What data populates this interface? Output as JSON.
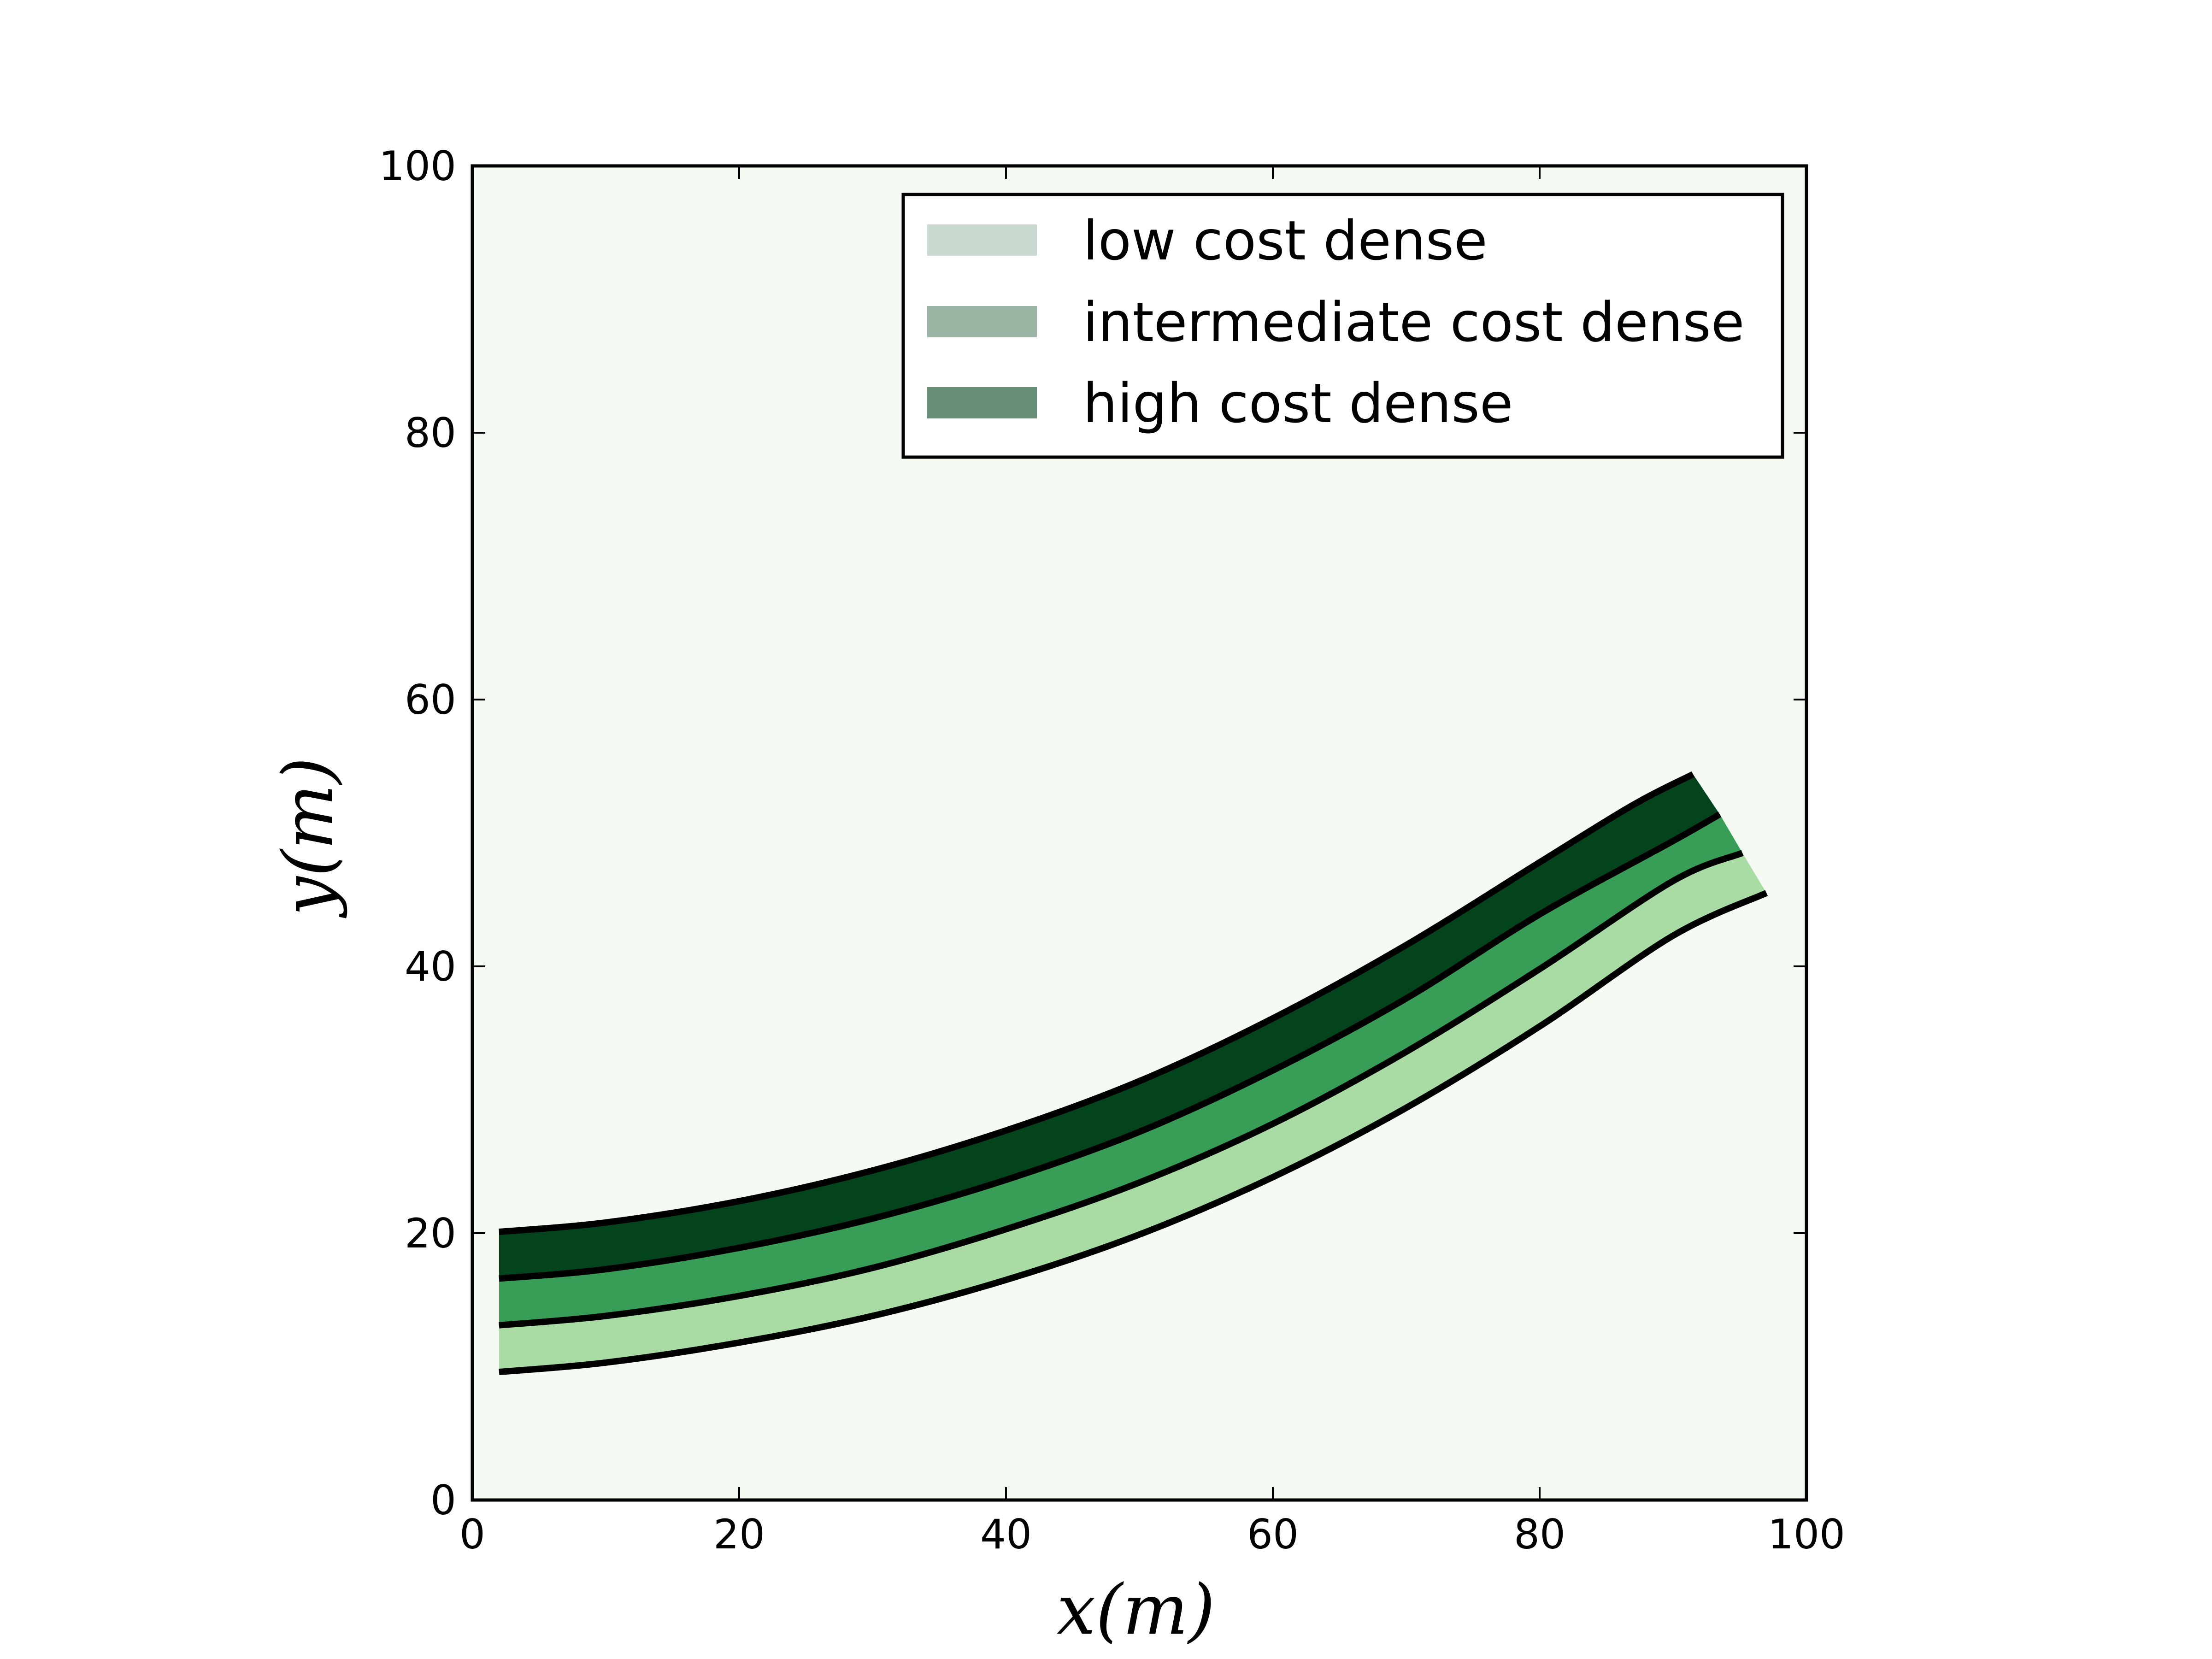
{
  "chart_data": {
    "type": "area",
    "xlabel": "x(m)",
    "ylabel": "y(m)",
    "xlim": [
      0,
      100
    ],
    "ylim": [
      0,
      100
    ],
    "xticks": [
      "0",
      "20",
      "40",
      "60",
      "80",
      "100"
    ],
    "yticks": [
      "0",
      "20",
      "40",
      "60",
      "80",
      "100"
    ],
    "x_tick_values": [
      0,
      20,
      40,
      60,
      80,
      100
    ],
    "y_tick_values": [
      0,
      20,
      40,
      60,
      80,
      100
    ],
    "grid": false,
    "background_color": "#f5faf3",
    "legend": {
      "placement": "top-right",
      "entries": [
        {
          "label": "low cost dense",
          "color": "#c9d9d0"
        },
        {
          "label": "intermediate cost dense",
          "color": "#9ab5a3"
        },
        {
          "label": "high cost dense",
          "color": "#6a8f78"
        }
      ]
    },
    "boundaries": [
      {
        "name": "lower",
        "points": [
          [
            2,
            9.6
          ],
          [
            10,
            10.3
          ],
          [
            20,
            11.8
          ],
          [
            30,
            13.8
          ],
          [
            40,
            16.5
          ],
          [
            50,
            19.9
          ],
          [
            60,
            24.2
          ],
          [
            70,
            29.4
          ],
          [
            80,
            35.5
          ],
          [
            90,
            42.3
          ],
          [
            97,
            45.5
          ]
        ]
      },
      {
        "name": "mid-lower",
        "points": [
          [
            2,
            13.1
          ],
          [
            10,
            13.8
          ],
          [
            20,
            15.3
          ],
          [
            30,
            17.4
          ],
          [
            40,
            20.3
          ],
          [
            50,
            23.8
          ],
          [
            60,
            28.2
          ],
          [
            70,
            33.6
          ],
          [
            80,
            39.8
          ],
          [
            90,
            46.4
          ],
          [
            95.2,
            48.5
          ]
        ]
      },
      {
        "name": "mid-upper",
        "points": [
          [
            2,
            16.6
          ],
          [
            10,
            17.3
          ],
          [
            20,
            18.9
          ],
          [
            30,
            21.1
          ],
          [
            40,
            24.0
          ],
          [
            50,
            27.6
          ],
          [
            60,
            32.2
          ],
          [
            70,
            37.6
          ],
          [
            80,
            43.9
          ],
          [
            90,
            49.4
          ],
          [
            93.5,
            51.4
          ]
        ]
      },
      {
        "name": "upper",
        "points": [
          [
            2,
            20.1
          ],
          [
            10,
            20.8
          ],
          [
            20,
            22.4
          ],
          [
            30,
            24.7
          ],
          [
            40,
            27.7
          ],
          [
            50,
            31.4
          ],
          [
            60,
            36.1
          ],
          [
            70,
            41.6
          ],
          [
            80,
            47.8
          ],
          [
            87,
            52.1
          ],
          [
            91.5,
            54.4
          ]
        ]
      }
    ],
    "bands": [
      {
        "between": [
          "lower",
          "mid-lower"
        ],
        "color": "#a9dca4"
      },
      {
        "between": [
          "mid-lower",
          "mid-upper"
        ],
        "color": "#389e57"
      },
      {
        "between": [
          "mid-upper",
          "upper"
        ],
        "color": "#04441d"
      }
    ],
    "boundary_line_color": "#000000"
  }
}
